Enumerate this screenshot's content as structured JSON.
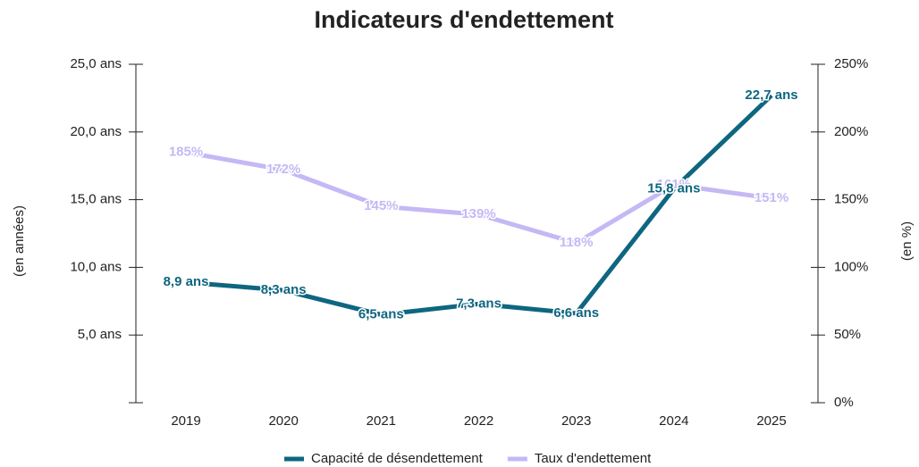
{
  "chart_data": {
    "type": "line",
    "title": "Indicateurs d'endettement",
    "y_label": "(en années)",
    "y2_label": "(en %)",
    "categories": [
      "2019",
      "2020",
      "2021",
      "2022",
      "2023",
      "2024",
      "2025"
    ],
    "series": [
      {
        "name": "Capacité de désendettement",
        "color": "#0e6680",
        "values": [
          8.9,
          8.3,
          6.5,
          7.3,
          6.6,
          15.8,
          22.7
        ],
        "value_labels": [
          "8,9 ans",
          "8,3 ans",
          "6,5 ans",
          "7,3 ans",
          "6,6 ans",
          "15,8 ans",
          "22,7 ans"
        ]
      },
      {
        "name": "Taux d'endettement",
        "color": "#c5b8f5",
        "axis": "y2",
        "values": [
          185,
          172,
          145,
          139,
          118,
          161,
          151
        ],
        "value_labels": [
          "185%",
          "172%",
          "145%",
          "139%",
          "118%",
          "161%",
          "151%"
        ]
      }
    ],
    "ylim": [
      0,
      25
    ],
    "yticks": [
      {
        "value": 5,
        "label": "5,0 ans"
      },
      {
        "value": 10,
        "label": "10,0 ans"
      },
      {
        "value": 15,
        "label": "15,0 ans"
      },
      {
        "value": 20,
        "label": "20,0 ans"
      },
      {
        "value": 25,
        "label": "25,0 ans"
      }
    ],
    "y2lim": [
      0,
      250
    ],
    "y2ticks": [
      {
        "value": 0,
        "label": "0%"
      },
      {
        "value": 50,
        "label": "50%"
      },
      {
        "value": 100,
        "label": "100%"
      },
      {
        "value": 150,
        "label": "150%"
      },
      {
        "value": 200,
        "label": "200%"
      },
      {
        "value": 250,
        "label": "250%"
      }
    ],
    "legend": "bottom"
  }
}
